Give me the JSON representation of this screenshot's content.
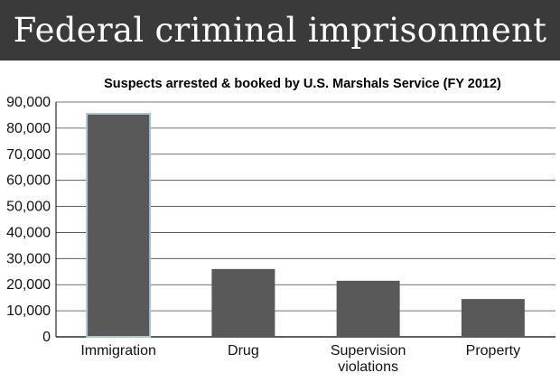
{
  "header": {
    "title": "Federal criminal imprisonment",
    "background": "#3a3a3a"
  },
  "chart_data": {
    "type": "bar",
    "title": "Suspects arrested & booked by U.S. Marshals Service (FY 2012)",
    "categories": [
      [
        "Immigration"
      ],
      [
        "Drug"
      ],
      [
        "Supervision",
        "violations"
      ],
      [
        "Property"
      ]
    ],
    "values": [
      85500,
      26000,
      21500,
      14500
    ],
    "ylim": [
      0,
      90000
    ],
    "yticks": [
      0,
      10000,
      20000,
      30000,
      40000,
      50000,
      60000,
      70000,
      80000,
      90000
    ],
    "ytick_labels": [
      "0",
      "10,000",
      "20,000",
      "30,000",
      "40,000",
      "50,000",
      "60,000",
      "70,000",
      "80,000",
      "90,000"
    ],
    "grid": true,
    "bar_color": "#595959",
    "highlight_color": "#a8c6d6"
  }
}
